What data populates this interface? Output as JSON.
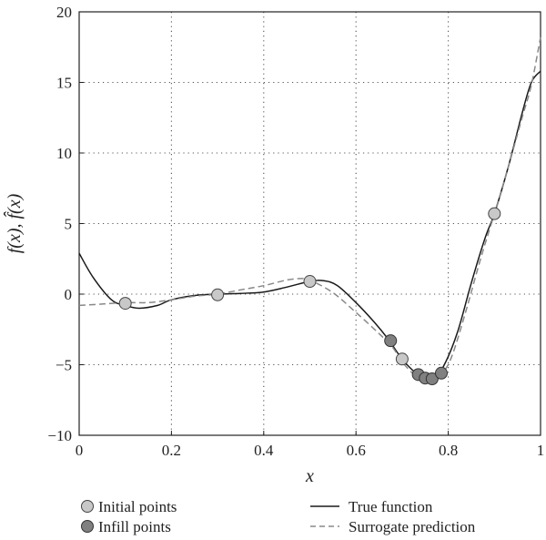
{
  "chart_data": {
    "type": "line",
    "xlabel": "x",
    "ylabel": "f(x), f̂(x)",
    "xlim": [
      0,
      1
    ],
    "ylim": [
      -10,
      20
    ],
    "x_ticks": [
      "0",
      "0.2",
      "0.4",
      "0.6",
      "0.8",
      "1"
    ],
    "y_ticks": [
      "−10",
      "−5",
      "0",
      "5",
      "10",
      "15",
      "20"
    ],
    "x_tick_values": [
      0,
      0.2,
      0.4,
      0.6,
      0.8,
      1.0
    ],
    "y_tick_values": [
      -10,
      -5,
      0,
      5,
      10,
      15,
      20
    ],
    "grid": true,
    "series": [
      {
        "name": "True function",
        "style": "solid",
        "color": "#1a1a1a",
        "points": [
          [
            0,
            2.9
          ],
          [
            0.03,
            1.2
          ],
          [
            0.07,
            -0.4
          ],
          [
            0.1,
            -0.8
          ],
          [
            0.13,
            -1.0
          ],
          [
            0.17,
            -0.8
          ],
          [
            0.2,
            -0.4
          ],
          [
            0.25,
            -0.1
          ],
          [
            0.3,
            0.0
          ],
          [
            0.35,
            0.05
          ],
          [
            0.4,
            0.15
          ],
          [
            0.45,
            0.5
          ],
          [
            0.5,
            0.9
          ],
          [
            0.53,
            0.95
          ],
          [
            0.56,
            0.6
          ],
          [
            0.6,
            -0.6
          ],
          [
            0.64,
            -2.0
          ],
          [
            0.67,
            -3.2
          ],
          [
            0.7,
            -4.6
          ],
          [
            0.73,
            -5.6
          ],
          [
            0.75,
            -6.0
          ],
          [
            0.77,
            -5.9
          ],
          [
            0.79,
            -5.1
          ],
          [
            0.82,
            -2.7
          ],
          [
            0.85,
            0.8
          ],
          [
            0.88,
            4.0
          ],
          [
            0.9,
            5.7
          ],
          [
            0.93,
            9.0
          ],
          [
            0.96,
            12.8
          ],
          [
            0.98,
            15.0
          ],
          [
            1.0,
            15.8
          ]
        ]
      },
      {
        "name": "Surrogate prediction",
        "style": "dashed",
        "color": "#888888",
        "points": [
          [
            0,
            -0.8
          ],
          [
            0.05,
            -0.7
          ],
          [
            0.1,
            -0.6
          ],
          [
            0.15,
            -0.6
          ],
          [
            0.2,
            -0.4
          ],
          [
            0.25,
            -0.15
          ],
          [
            0.3,
            0.0
          ],
          [
            0.35,
            0.3
          ],
          [
            0.4,
            0.6
          ],
          [
            0.45,
            1.0
          ],
          [
            0.48,
            1.1
          ],
          [
            0.5,
            1.0
          ],
          [
            0.55,
            0.1
          ],
          [
            0.6,
            -1.3
          ],
          [
            0.65,
            -2.8
          ],
          [
            0.68,
            -3.8
          ],
          [
            0.7,
            -4.8
          ],
          [
            0.73,
            -5.8
          ],
          [
            0.75,
            -5.9
          ],
          [
            0.77,
            -5.9
          ],
          [
            0.79,
            -5.5
          ],
          [
            0.81,
            -4.2
          ],
          [
            0.84,
            -1.0
          ],
          [
            0.87,
            2.5
          ],
          [
            0.9,
            5.7
          ],
          [
            0.93,
            9.0
          ],
          [
            0.96,
            12.5
          ],
          [
            0.98,
            14.8
          ],
          [
            1.0,
            18.2
          ]
        ]
      }
    ],
    "initial_points": {
      "name": "Initial points",
      "color": "#c8c8c8",
      "x": [
        0.1,
        0.3,
        0.5,
        0.7,
        0.9
      ],
      "y": [
        -0.65,
        -0.05,
        0.9,
        -4.6,
        5.7
      ]
    },
    "infill_points": {
      "name": "Infill points",
      "color": "#808080",
      "x": [
        0.675,
        0.735,
        0.75,
        0.765,
        0.785
      ],
      "y": [
        -3.3,
        -5.7,
        -5.95,
        -6.0,
        -5.6
      ]
    }
  }
}
